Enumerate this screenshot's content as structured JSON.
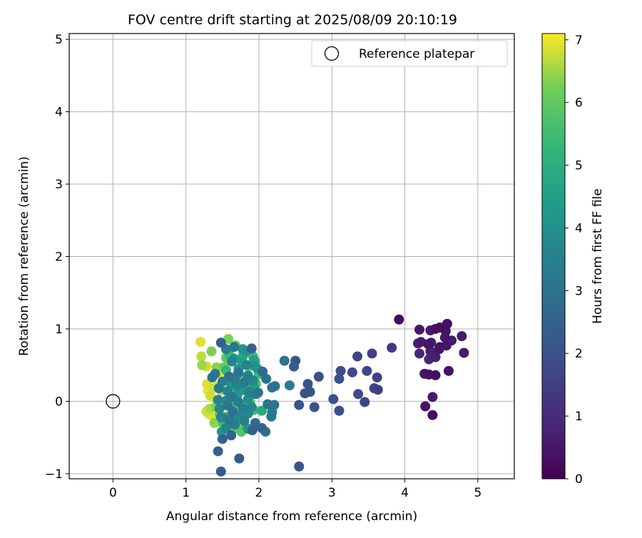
{
  "chart_data": {
    "type": "scatter",
    "title": "FOV centre drift starting at 2025/08/09 20:10:19",
    "xlabel": "Angular distance from reference (arcmin)",
    "ylabel": "Rotation from reference (arcmin)",
    "xlim": [
      -0.6,
      5.5
    ],
    "ylim": [
      -1.07,
      5.08
    ],
    "xticks": [
      0,
      1,
      2,
      3,
      4,
      5
    ],
    "yticks": [
      -1,
      0,
      1,
      2,
      3,
      4,
      5
    ],
    "xtick_labels": [
      "0",
      "1",
      "2",
      "3",
      "4",
      "5"
    ],
    "ytick_labels": [
      "−1",
      "0",
      "1",
      "2",
      "3",
      "4",
      "5"
    ],
    "grid": true,
    "legend": {
      "placement": "top-right",
      "entries": [
        "Reference platepar"
      ]
    },
    "colorbar": {
      "label": "Hours from first FF file",
      "colormap": "viridis",
      "range": [
        0,
        7.1
      ],
      "ticks": [
        0,
        1,
        2,
        3,
        4,
        5,
        6,
        7
      ],
      "tick_labels": [
        "0",
        "1",
        "2",
        "3",
        "4",
        "5",
        "6",
        "7"
      ]
    },
    "reference_point": {
      "name": "Reference platepar",
      "x": 0,
      "y": 0
    },
    "series": [
      {
        "points": [
          {
            "x": 3.92,
            "y": 1.13,
            "c": 0.2
          },
          {
            "x": 4.2,
            "y": 0.99,
            "c": 0.5
          },
          {
            "x": 4.35,
            "y": 0.98,
            "c": 0.6
          },
          {
            "x": 4.42,
            "y": 1.0,
            "c": 0.4
          },
          {
            "x": 4.48,
            "y": 1.02,
            "c": 0.3
          },
          {
            "x": 4.58,
            "y": 1.07,
            "c": 0.3
          },
          {
            "x": 4.56,
            "y": 0.97,
            "c": 0.4
          },
          {
            "x": 4.55,
            "y": 0.88,
            "c": 0.5
          },
          {
            "x": 4.78,
            "y": 0.9,
            "c": 0.6
          },
          {
            "x": 4.18,
            "y": 0.8,
            "c": 0.7
          },
          {
            "x": 4.22,
            "y": 0.82,
            "c": 0.6
          },
          {
            "x": 4.32,
            "y": 0.79,
            "c": 0.5
          },
          {
            "x": 4.36,
            "y": 0.81,
            "c": 0.6
          },
          {
            "x": 4.48,
            "y": 0.75,
            "c": 0.4
          },
          {
            "x": 4.57,
            "y": 0.77,
            "c": 0.5
          },
          {
            "x": 4.64,
            "y": 0.84,
            "c": 0.6
          },
          {
            "x": 4.2,
            "y": 0.66,
            "c": 0.8
          },
          {
            "x": 4.35,
            "y": 0.69,
            "c": 0.7
          },
          {
            "x": 4.33,
            "y": 0.58,
            "c": 0.9
          },
          {
            "x": 4.38,
            "y": 0.62,
            "c": 0.8
          },
          {
            "x": 4.42,
            "y": 0.61,
            "c": 0.7
          },
          {
            "x": 4.47,
            "y": 0.72,
            "c": 0.5
          },
          {
            "x": 4.81,
            "y": 0.67,
            "c": 0.6
          },
          {
            "x": 4.27,
            "y": 0.38,
            "c": 0.5
          },
          {
            "x": 4.33,
            "y": 0.37,
            "c": 0.4
          },
          {
            "x": 4.42,
            "y": 0.36,
            "c": 0.3
          },
          {
            "x": 4.6,
            "y": 0.42,
            "c": 0.4
          },
          {
            "x": 4.38,
            "y": 0.06,
            "c": 0.6
          },
          {
            "x": 4.28,
            "y": -0.07,
            "c": 0.5
          },
          {
            "x": 4.38,
            "y": -0.19,
            "c": 0.3
          },
          {
            "x": 3.82,
            "y": 0.74,
            "c": 1.4
          },
          {
            "x": 3.55,
            "y": 0.66,
            "c": 1.6
          },
          {
            "x": 3.35,
            "y": 0.62,
            "c": 1.7
          },
          {
            "x": 3.12,
            "y": 0.42,
            "c": 1.9
          },
          {
            "x": 3.28,
            "y": 0.4,
            "c": 1.8
          },
          {
            "x": 3.48,
            "y": 0.42,
            "c": 1.7
          },
          {
            "x": 3.62,
            "y": 0.33,
            "c": 1.6
          },
          {
            "x": 3.1,
            "y": 0.31,
            "c": 2.0
          },
          {
            "x": 3.58,
            "y": 0.18,
            "c": 1.6
          },
          {
            "x": 3.63,
            "y": 0.16,
            "c": 1.5
          },
          {
            "x": 3.36,
            "y": 0.1,
            "c": 1.8
          },
          {
            "x": 3.02,
            "y": 0.03,
            "c": 2.0
          },
          {
            "x": 3.45,
            "y": -0.01,
            "c": 1.7
          },
          {
            "x": 3.1,
            "y": -0.13,
            "c": 1.9
          },
          {
            "x": 2.82,
            "y": 0.34,
            "c": 2.0
          },
          {
            "x": 2.5,
            "y": 0.56,
            "c": 2.2
          },
          {
            "x": 2.48,
            "y": 0.48,
            "c": 2.3
          },
          {
            "x": 2.67,
            "y": 0.24,
            "c": 2.1
          },
          {
            "x": 2.7,
            "y": 0.13,
            "c": 2.1
          },
          {
            "x": 2.63,
            "y": 0.11,
            "c": 2.0
          },
          {
            "x": 2.55,
            "y": -0.05,
            "c": 2.1
          },
          {
            "x": 2.76,
            "y": -0.08,
            "c": 2.0
          },
          {
            "x": 2.55,
            "y": -0.9,
            "c": 2.2
          },
          {
            "x": 2.35,
            "y": 0.56,
            "c": 3.0
          },
          {
            "x": 2.42,
            "y": 0.22,
            "c": 3.3
          },
          {
            "x": 1.73,
            "y": -0.79,
            "c": 2.3
          },
          {
            "x": 1.44,
            "y": -0.69,
            "c": 2.4
          },
          {
            "x": 1.48,
            "y": -0.97,
            "c": 2.3
          },
          {
            "x": 1.48,
            "y": 0.81,
            "c": 2.4
          },
          {
            "x": 1.9,
            "y": 0.73,
            "c": 2.5
          },
          {
            "x": 1.5,
            "y": -0.52,
            "c": 2.5
          },
          {
            "x": 1.62,
            "y": -0.47,
            "c": 2.5
          },
          {
            "x": 1.91,
            "y": -0.4,
            "c": 2.5
          },
          {
            "x": 2.04,
            "y": -0.37,
            "c": 2.6
          },
          {
            "x": 2.09,
            "y": -0.42,
            "c": 2.9
          },
          {
            "x": 1.95,
            "y": -0.3,
            "c": 2.7
          },
          {
            "x": 2.05,
            "y": 0.41,
            "c": 2.7
          },
          {
            "x": 2.1,
            "y": 0.31,
            "c": 3.0
          },
          {
            "x": 2.18,
            "y": 0.19,
            "c": 3.0
          },
          {
            "x": 2.22,
            "y": 0.21,
            "c": 3.2
          },
          {
            "x": 2.12,
            "y": -0.04,
            "c": 3.1
          },
          {
            "x": 2.21,
            "y": -0.05,
            "c": 3.0
          },
          {
            "x": 2.18,
            "y": -0.15,
            "c": 3.2
          },
          {
            "x": 2.17,
            "y": -0.21,
            "c": 3.2
          },
          {
            "x": 1.99,
            "y": 0.12,
            "c": 3.1
          },
          {
            "x": 1.55,
            "y": 0.72,
            "c": 3.3
          },
          {
            "x": 1.66,
            "y": 0.75,
            "c": 3.2
          },
          {
            "x": 1.78,
            "y": 0.72,
            "c": 4.0
          },
          {
            "x": 1.63,
            "y": 0.55,
            "c": 3.5
          },
          {
            "x": 1.83,
            "y": 0.5,
            "c": 3.6
          },
          {
            "x": 1.95,
            "y": 0.48,
            "c": 4.0
          },
          {
            "x": 1.72,
            "y": 0.4,
            "c": 3.0
          },
          {
            "x": 1.85,
            "y": 0.35,
            "c": 3.4
          },
          {
            "x": 1.4,
            "y": 0.38,
            "c": 3.2
          },
          {
            "x": 1.36,
            "y": 0.33,
            "c": 3.0
          },
          {
            "x": 1.5,
            "y": 0.27,
            "c": 3.4
          },
          {
            "x": 1.59,
            "y": 0.34,
            "c": 3.0
          },
          {
            "x": 1.67,
            "y": 0.3,
            "c": 3.3
          },
          {
            "x": 1.8,
            "y": 0.26,
            "c": 3.3
          },
          {
            "x": 1.92,
            "y": 0.29,
            "c": 3.7
          },
          {
            "x": 1.45,
            "y": 0.18,
            "c": 3.2
          },
          {
            "x": 1.57,
            "y": 0.14,
            "c": 3.5
          },
          {
            "x": 1.7,
            "y": 0.21,
            "c": 3.7
          },
          {
            "x": 1.86,
            "y": 0.13,
            "c": 3.5
          },
          {
            "x": 1.96,
            "y": 0.1,
            "c": 3.4
          },
          {
            "x": 1.44,
            "y": 0.02,
            "c": 3.5
          },
          {
            "x": 1.55,
            "y": 0.01,
            "c": 3.7
          },
          {
            "x": 1.63,
            "y": 0.06,
            "c": 3.2
          },
          {
            "x": 1.72,
            "y": -0.01,
            "c": 3.3
          },
          {
            "x": 1.85,
            "y": 0.03,
            "c": 3.8
          },
          {
            "x": 1.46,
            "y": -0.1,
            "c": 3.6
          },
          {
            "x": 1.57,
            "y": -0.06,
            "c": 3.2
          },
          {
            "x": 1.64,
            "y": -0.14,
            "c": 3.0
          },
          {
            "x": 1.78,
            "y": -0.1,
            "c": 3.5
          },
          {
            "x": 1.9,
            "y": -0.08,
            "c": 3.6
          },
          {
            "x": 1.48,
            "y": -0.22,
            "c": 3.5
          },
          {
            "x": 1.6,
            "y": -0.26,
            "c": 3.2
          },
          {
            "x": 1.74,
            "y": -0.21,
            "c": 3.8
          },
          {
            "x": 1.85,
            "y": -0.17,
            "c": 3.7
          },
          {
            "x": 1.55,
            "y": -0.37,
            "c": 3.6
          },
          {
            "x": 1.67,
            "y": -0.32,
            "c": 3.3
          },
          {
            "x": 1.8,
            "y": -0.27,
            "c": 3.4
          },
          {
            "x": 1.83,
            "y": 0.69,
            "c": 4.2
          },
          {
            "x": 1.93,
            "y": 0.57,
            "c": 4.5
          },
          {
            "x": 1.66,
            "y": 0.59,
            "c": 4.3
          },
          {
            "x": 1.77,
            "y": 0.55,
            "c": 4.5
          },
          {
            "x": 1.72,
            "y": 0.45,
            "c": 4.4
          },
          {
            "x": 1.98,
            "y": 0.45,
            "c": 4.6
          },
          {
            "x": 1.62,
            "y": 0.24,
            "c": 4.2
          },
          {
            "x": 1.76,
            "y": 0.15,
            "c": 4.2
          },
          {
            "x": 1.93,
            "y": 0.2,
            "c": 4.4
          },
          {
            "x": 1.7,
            "y": 0.08,
            "c": 4.3
          },
          {
            "x": 1.54,
            "y": -0.23,
            "c": 4.1
          },
          {
            "x": 1.69,
            "y": -0.22,
            "c": 4.5
          },
          {
            "x": 1.85,
            "y": -0.38,
            "c": 4.2
          },
          {
            "x": 1.49,
            "y": -0.42,
            "c": 4.3
          },
          {
            "x": 2.04,
            "y": -0.13,
            "c": 4.9
          },
          {
            "x": 1.78,
            "y": 0.62,
            "c": 5.0
          },
          {
            "x": 1.6,
            "y": 0.63,
            "c": 5.3
          },
          {
            "x": 1.79,
            "y": 0.66,
            "c": 5.1
          },
          {
            "x": 1.92,
            "y": 0.62,
            "c": 5.4
          },
          {
            "x": 1.95,
            "y": 0.55,
            "c": 5.7
          },
          {
            "x": 2.0,
            "y": 0.39,
            "c": 5.3
          },
          {
            "x": 1.71,
            "y": 0.38,
            "c": 5.0
          },
          {
            "x": 1.85,
            "y": 0.36,
            "c": 5.2
          },
          {
            "x": 1.63,
            "y": 0.29,
            "c": 5.4
          },
          {
            "x": 1.55,
            "y": 0.43,
            "c": 5.3
          },
          {
            "x": 1.96,
            "y": 0.24,
            "c": 5.6
          },
          {
            "x": 1.82,
            "y": 0.22,
            "c": 5.4
          },
          {
            "x": 1.66,
            "y": 0.17,
            "c": 5.5
          },
          {
            "x": 1.87,
            "y": 0.09,
            "c": 5.5
          },
          {
            "x": 1.61,
            "y": -0.03,
            "c": 5.3
          },
          {
            "x": 1.8,
            "y": -0.05,
            "c": 5.5
          },
          {
            "x": 1.69,
            "y": -0.16,
            "c": 5.6
          },
          {
            "x": 1.93,
            "y": -0.12,
            "c": 5.4
          },
          {
            "x": 1.51,
            "y": -0.3,
            "c": 5.5
          },
          {
            "x": 1.82,
            "y": -0.36,
            "c": 5.6
          },
          {
            "x": 1.76,
            "y": -0.42,
            "c": 5.8
          },
          {
            "x": 1.66,
            "y": -0.38,
            "c": 5.9
          },
          {
            "x": 1.55,
            "y": 0.6,
            "c": 5.9
          },
          {
            "x": 1.68,
            "y": 0.77,
            "c": 6.1
          },
          {
            "x": 1.58,
            "y": 0.86,
            "c": 6.3
          },
          {
            "x": 1.88,
            "y": 0.49,
            "c": 6.0
          },
          {
            "x": 2.0,
            "y": 0.37,
            "c": 6.2
          },
          {
            "x": 1.75,
            "y": 0.32,
            "c": 6.0
          },
          {
            "x": 1.88,
            "y": 0.27,
            "c": 6.0
          },
          {
            "x": 1.67,
            "y": 0.22,
            "c": 6.1
          },
          {
            "x": 1.93,
            "y": 0.14,
            "c": 6.0
          },
          {
            "x": 1.42,
            "y": 0.47,
            "c": 6.4
          },
          {
            "x": 1.52,
            "y": 0.47,
            "c": 6.2
          },
          {
            "x": 1.35,
            "y": 0.69,
            "c": 6.3
          },
          {
            "x": 1.66,
            "y": 0.01,
            "c": 6.1
          },
          {
            "x": 1.88,
            "y": -0.01,
            "c": 6.0
          },
          {
            "x": 1.41,
            "y": -0.08,
            "c": 6.3
          },
          {
            "x": 1.71,
            "y": -0.11,
            "c": 6.1
          },
          {
            "x": 1.46,
            "y": -0.18,
            "c": 6.3
          },
          {
            "x": 1.56,
            "y": -0.21,
            "c": 6.2
          },
          {
            "x": 1.64,
            "y": -0.24,
            "c": 6.1
          },
          {
            "x": 1.39,
            "y": -0.3,
            "c": 6.4
          },
          {
            "x": 1.74,
            "y": -0.31,
            "c": 6.2
          },
          {
            "x": 1.22,
            "y": 0.5,
            "c": 6.5
          },
          {
            "x": 1.2,
            "y": 0.82,
            "c": 6.9
          },
          {
            "x": 1.21,
            "y": 0.62,
            "c": 6.7
          },
          {
            "x": 1.28,
            "y": 0.48,
            "c": 6.8
          },
          {
            "x": 1.29,
            "y": 0.24,
            "c": 6.9
          },
          {
            "x": 1.3,
            "y": 0.15,
            "c": 7.0
          },
          {
            "x": 1.37,
            "y": 0.18,
            "c": 6.8
          },
          {
            "x": 1.43,
            "y": 0.21,
            "c": 6.9
          },
          {
            "x": 1.48,
            "y": 0.15,
            "c": 6.6
          },
          {
            "x": 1.33,
            "y": 0.08,
            "c": 6.8
          },
          {
            "x": 1.41,
            "y": 0.02,
            "c": 6.9
          },
          {
            "x": 1.45,
            "y": -0.02,
            "c": 6.7
          },
          {
            "x": 1.28,
            "y": -0.14,
            "c": 6.8
          },
          {
            "x": 1.33,
            "y": -0.1,
            "c": 6.6
          },
          {
            "x": 1.38,
            "y": -0.22,
            "c": 7.0
          },
          {
            "x": 1.48,
            "y": -0.29,
            "c": 7.0
          },
          {
            "x": 1.47,
            "y": 0.38,
            "c": 6.9
          },
          {
            "x": 1.32,
            "y": -0.18,
            "c": 6.9
          }
        ]
      }
    ]
  }
}
